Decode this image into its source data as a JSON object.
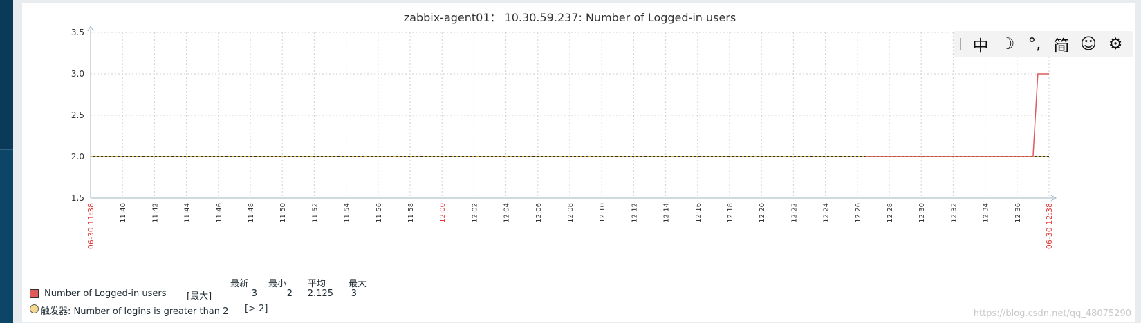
{
  "chart_data": {
    "type": "line",
    "title": "zabbix-agent01： 10.30.59.237: Number of Logged-in users",
    "ylim": [
      1.5,
      3.5
    ],
    "yticks": [
      "3.5",
      "3.0",
      "2.5",
      "2.0",
      "1.5"
    ],
    "x_range_minutes": [
      698,
      758
    ],
    "xticks": [
      {
        "label": "11:40",
        "minute": 700
      },
      {
        "label": "11:42",
        "minute": 702
      },
      {
        "label": "11:44",
        "minute": 704
      },
      {
        "label": "11:46",
        "minute": 706
      },
      {
        "label": "11:48",
        "minute": 708
      },
      {
        "label": "11:50",
        "minute": 710
      },
      {
        "label": "11:52",
        "minute": 712
      },
      {
        "label": "11:54",
        "minute": 714
      },
      {
        "label": "11:56",
        "minute": 716
      },
      {
        "label": "11:58",
        "minute": 718
      },
      {
        "label": "12:00",
        "minute": 720,
        "highlight": true
      },
      {
        "label": "12:02",
        "minute": 722
      },
      {
        "label": "12:04",
        "minute": 724
      },
      {
        "label": "12:06",
        "minute": 726
      },
      {
        "label": "12:08",
        "minute": 728
      },
      {
        "label": "12:10",
        "minute": 730
      },
      {
        "label": "12:12",
        "minute": 732
      },
      {
        "label": "12:14",
        "minute": 734
      },
      {
        "label": "12:16",
        "minute": 736
      },
      {
        "label": "12:18",
        "minute": 738
      },
      {
        "label": "12:20",
        "minute": 740
      },
      {
        "label": "12:22",
        "minute": 742
      },
      {
        "label": "12:24",
        "minute": 744
      },
      {
        "label": "12:26",
        "minute": 746
      },
      {
        "label": "12:28",
        "minute": 748
      },
      {
        "label": "12:30",
        "minute": 750
      },
      {
        "label": "12:32",
        "minute": 752
      },
      {
        "label": "12:34",
        "minute": 754
      },
      {
        "label": "12:36",
        "minute": 756
      }
    ],
    "range_start_label": "06-30 11:38",
    "range_end_label": "06-30 12:38",
    "series": [
      {
        "name": "Number of Logged-in users",
        "color": "#e15a5a",
        "x": [
          746.5,
          757,
          757.3,
          758
        ],
        "y": [
          2,
          2,
          3,
          3
        ]
      }
    ],
    "trigger": {
      "value": 2,
      "color": "#d4b13a"
    },
    "grid": true
  },
  "legend": {
    "headers": [
      "最新",
      "最小",
      "平均",
      "最大"
    ],
    "series_label": "Number of Logged-in users",
    "series_func": "[最大]",
    "series_values": [
      "3",
      "2",
      "2.125",
      "3"
    ],
    "series_color": "#e15a5a",
    "trigger_label": "触发器: Number of logins is greater than 2",
    "trigger_cond": "[> 2]",
    "trigger_color": "#f6d98f"
  },
  "ime_toolbar": {
    "items": [
      {
        "icon": "chinese-mode-icon",
        "glyph": "中"
      },
      {
        "icon": "moon-icon",
        "glyph": "☽"
      },
      {
        "icon": "punctuation-icon",
        "glyph": "°,"
      },
      {
        "icon": "simplified-chinese-icon",
        "glyph": "简"
      },
      {
        "icon": "smiley-icon",
        "glyph": "☺"
      },
      {
        "icon": "gear-icon",
        "glyph": "⚙"
      }
    ]
  },
  "watermark": "https://blog.csdn.net/qq_48075290"
}
